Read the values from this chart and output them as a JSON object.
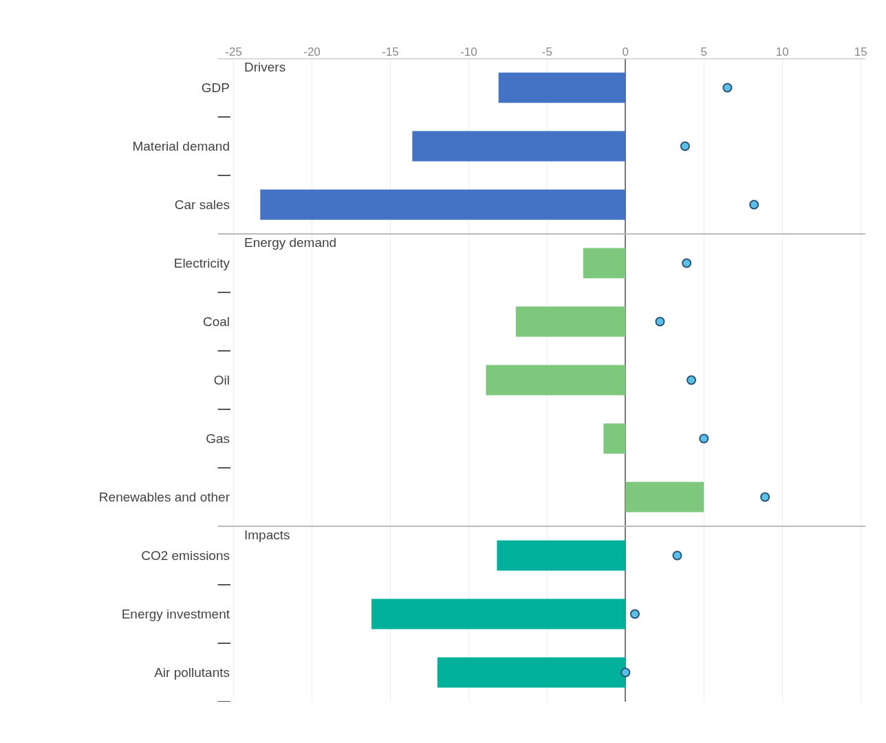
{
  "chart_data": {
    "type": "bar",
    "orientation": "horizontal",
    "categories": [
      "GDP",
      "Material demand",
      "Car sales",
      "Electricity",
      "Coal",
      "Oil",
      "Gas",
      "Renewables and other",
      "CO2 emissions",
      "Energy investment",
      "Air pollutants"
    ],
    "series": [
      {
        "type": "bar",
        "colors": [
          "#4472c4",
          "#4472c4",
          "#4472c4",
          "#7ec87e",
          "#7ec87e",
          "#7ec87e",
          "#7ec87e",
          "#7ec87e",
          "#00b09b",
          "#00b09b",
          "#00b09b"
        ],
        "values": [
          -8.1,
          -13.6,
          -23.3,
          -2.7,
          -7.0,
          -8.9,
          -1.4,
          5.0,
          -8.2,
          -16.2,
          -12.0
        ]
      },
      {
        "type": "scatter",
        "color": "#5bc0e8",
        "marker": "circle",
        "values": [
          6.5,
          3.8,
          8.2,
          3.9,
          2.2,
          4.2,
          5.0,
          8.9,
          3.3,
          0.6,
          0.0
        ]
      }
    ],
    "xlim": [
      -25.2,
      15.3
    ],
    "xticks": [
      -25,
      -20,
      -15,
      -10,
      -5,
      0,
      5,
      10,
      15
    ],
    "grid": "x",
    "annotations": [
      "Drivers",
      "Energy demand",
      "Impacts"
    ]
  }
}
